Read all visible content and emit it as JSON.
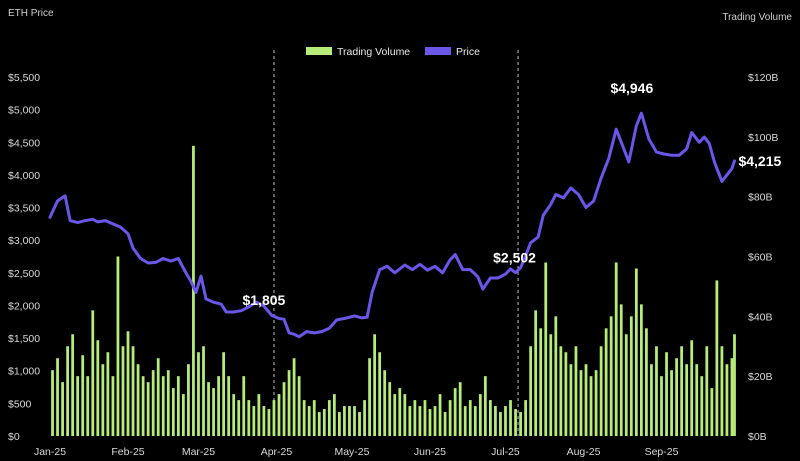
{
  "chart_data": {
    "type": "bar+line",
    "title": "",
    "ylabel_left": "ETH Price",
    "ylabel_right": "Trading Volume",
    "y_left_ticks": [
      "$0",
      "$500",
      "$1,000",
      "$1,500",
      "$2,000",
      "$2,500",
      "$3,000",
      "$3,500",
      "$4,000",
      "$4,500",
      "$5,000",
      "$5,500"
    ],
    "y_right_ticks": [
      "$0B",
      "$20B",
      "$40B",
      "$60B",
      "$80B",
      "$100B",
      "$120B"
    ],
    "x_ticks": [
      "Jan-25",
      "Feb-25",
      "Mar-25",
      "Apr-25",
      "May-25",
      "Jun-25",
      "Jul-25",
      "Aug-25",
      "Sep-25"
    ],
    "ylim_left": [
      0,
      5500
    ],
    "ylim_right": [
      0,
      120
    ],
    "legend": {
      "placement": "top-center",
      "items": [
        {
          "name": "Trading Volume",
          "color": "#b5ec7a"
        },
        {
          "name": "Price",
          "color": "#6a57e8"
        }
      ]
    },
    "vertical_markers": [
      "2025-03-31",
      "2025-07-06"
    ],
    "annotations": [
      {
        "text": "$1,805",
        "x": "2025-03-27",
        "y": 1805
      },
      {
        "text": "$2,502",
        "x": "2025-07-05",
        "y": 2502
      },
      {
        "text": "$4,946",
        "x": "2025-08-23",
        "y": 4946
      },
      {
        "text": "$4,215",
        "x": "2025-09-30",
        "y": 4215
      }
    ],
    "series": [
      {
        "name": "Price",
        "color": "#6a57e8",
        "points": [
          [
            "2025-01-01",
            3350
          ],
          [
            "2025-01-04",
            3600
          ],
          [
            "2025-01-07",
            3680
          ],
          [
            "2025-01-09",
            3300
          ],
          [
            "2025-01-12",
            3270
          ],
          [
            "2025-01-15",
            3300
          ],
          [
            "2025-01-18",
            3320
          ],
          [
            "2025-01-20",
            3280
          ],
          [
            "2025-01-23",
            3300
          ],
          [
            "2025-01-26",
            3250
          ],
          [
            "2025-01-29",
            3200
          ],
          [
            "2025-02-01",
            3100
          ],
          [
            "2025-02-03",
            2880
          ],
          [
            "2025-02-06",
            2720
          ],
          [
            "2025-02-09",
            2650
          ],
          [
            "2025-02-12",
            2660
          ],
          [
            "2025-02-15",
            2720
          ],
          [
            "2025-02-18",
            2680
          ],
          [
            "2025-02-21",
            2720
          ],
          [
            "2025-02-24",
            2500
          ],
          [
            "2025-02-26",
            2370
          ],
          [
            "2025-02-28",
            2200
          ],
          [
            "2025-03-02",
            2450
          ],
          [
            "2025-03-04",
            2100
          ],
          [
            "2025-03-07",
            2050
          ],
          [
            "2025-03-10",
            2020
          ],
          [
            "2025-03-12",
            1900
          ],
          [
            "2025-03-15",
            1900
          ],
          [
            "2025-03-18",
            1920
          ],
          [
            "2025-03-21",
            1980
          ],
          [
            "2025-03-24",
            2050
          ],
          [
            "2025-03-27",
            1990
          ],
          [
            "2025-03-30",
            1850
          ],
          [
            "2025-04-02",
            1800
          ],
          [
            "2025-04-04",
            1790
          ],
          [
            "2025-04-06",
            1580
          ],
          [
            "2025-04-08",
            1560
          ],
          [
            "2025-04-10",
            1520
          ],
          [
            "2025-04-13",
            1600
          ],
          [
            "2025-04-16",
            1580
          ],
          [
            "2025-04-19",
            1600
          ],
          [
            "2025-04-22",
            1650
          ],
          [
            "2025-04-25",
            1780
          ],
          [
            "2025-04-28",
            1800
          ],
          [
            "2025-05-02",
            1840
          ],
          [
            "2025-05-05",
            1810
          ],
          [
            "2025-05-07",
            1820
          ],
          [
            "2025-05-09",
            2200
          ],
          [
            "2025-05-12",
            2550
          ],
          [
            "2025-05-15",
            2600
          ],
          [
            "2025-05-18",
            2500
          ],
          [
            "2025-05-22",
            2620
          ],
          [
            "2025-05-25",
            2550
          ],
          [
            "2025-05-28",
            2630
          ],
          [
            "2025-05-31",
            2540
          ],
          [
            "2025-06-03",
            2600
          ],
          [
            "2025-06-06",
            2500
          ],
          [
            "2025-06-09",
            2700
          ],
          [
            "2025-06-11",
            2780
          ],
          [
            "2025-06-14",
            2550
          ],
          [
            "2025-06-17",
            2550
          ],
          [
            "2025-06-20",
            2440
          ],
          [
            "2025-06-22",
            2250
          ],
          [
            "2025-06-25",
            2420
          ],
          [
            "2025-06-28",
            2420
          ],
          [
            "2025-07-01",
            2480
          ],
          [
            "2025-07-03",
            2560
          ],
          [
            "2025-07-05",
            2502
          ],
          [
            "2025-07-07",
            2580
          ],
          [
            "2025-07-09",
            2760
          ],
          [
            "2025-07-11",
            2960
          ],
          [
            "2025-07-14",
            3050
          ],
          [
            "2025-07-16",
            3380
          ],
          [
            "2025-07-19",
            3550
          ],
          [
            "2025-07-21",
            3700
          ],
          [
            "2025-07-24",
            3650
          ],
          [
            "2025-07-27",
            3800
          ],
          [
            "2025-07-30",
            3700
          ],
          [
            "2025-08-02",
            3500
          ],
          [
            "2025-08-05",
            3600
          ],
          [
            "2025-08-08",
            3950
          ],
          [
            "2025-08-11",
            4250
          ],
          [
            "2025-08-14",
            4700
          ],
          [
            "2025-08-17",
            4400
          ],
          [
            "2025-08-19",
            4200
          ],
          [
            "2025-08-22",
            4750
          ],
          [
            "2025-08-24",
            4946
          ],
          [
            "2025-08-27",
            4550
          ],
          [
            "2025-08-30",
            4350
          ],
          [
            "2025-09-02",
            4320
          ],
          [
            "2025-09-05",
            4300
          ],
          [
            "2025-09-08",
            4300
          ],
          [
            "2025-09-11",
            4400
          ],
          [
            "2025-09-13",
            4650
          ],
          [
            "2025-09-16",
            4500
          ],
          [
            "2025-09-18",
            4580
          ],
          [
            "2025-09-20",
            4480
          ],
          [
            "2025-09-22",
            4200
          ],
          [
            "2025-09-25",
            3900
          ],
          [
            "2025-09-27",
            4000
          ],
          [
            "2025-09-29",
            4100
          ],
          [
            "2025-09-30",
            4215
          ]
        ]
      },
      {
        "name": "Trading Volume",
        "color": "#b5ec7a",
        "unit": "B",
        "points": [
          [
            "2025-01-02",
            22
          ],
          [
            "2025-01-04",
            26
          ],
          [
            "2025-01-06",
            18
          ],
          [
            "2025-01-08",
            30
          ],
          [
            "2025-01-10",
            34
          ],
          [
            "2025-01-12",
            20
          ],
          [
            "2025-01-14",
            27
          ],
          [
            "2025-01-16",
            20
          ],
          [
            "2025-01-18",
            42
          ],
          [
            "2025-01-20",
            32
          ],
          [
            "2025-01-22",
            24
          ],
          [
            "2025-01-24",
            28
          ],
          [
            "2025-01-26",
            20
          ],
          [
            "2025-01-28",
            60
          ],
          [
            "2025-01-30",
            30
          ],
          [
            "2025-02-01",
            35
          ],
          [
            "2025-02-03",
            30
          ],
          [
            "2025-02-05",
            24
          ],
          [
            "2025-02-07",
            20
          ],
          [
            "2025-02-09",
            18
          ],
          [
            "2025-02-11",
            22
          ],
          [
            "2025-02-13",
            26
          ],
          [
            "2025-02-15",
            20
          ],
          [
            "2025-02-17",
            22
          ],
          [
            "2025-02-19",
            16
          ],
          [
            "2025-02-21",
            20
          ],
          [
            "2025-02-23",
            14
          ],
          [
            "2025-02-25",
            24
          ],
          [
            "2025-02-27",
            97
          ],
          [
            "2025-03-01",
            28
          ],
          [
            "2025-03-03",
            30
          ],
          [
            "2025-03-05",
            18
          ],
          [
            "2025-03-07",
            16
          ],
          [
            "2025-03-09",
            20
          ],
          [
            "2025-03-11",
            28
          ],
          [
            "2025-03-13",
            20
          ],
          [
            "2025-03-15",
            14
          ],
          [
            "2025-03-17",
            12
          ],
          [
            "2025-03-19",
            20
          ],
          [
            "2025-03-21",
            12
          ],
          [
            "2025-03-23",
            10
          ],
          [
            "2025-03-25",
            14
          ],
          [
            "2025-03-27",
            10
          ],
          [
            "2025-03-29",
            9
          ],
          [
            "2025-03-31",
            12
          ],
          [
            "2025-04-02",
            14
          ],
          [
            "2025-04-04",
            18
          ],
          [
            "2025-04-06",
            22
          ],
          [
            "2025-04-08",
            26
          ],
          [
            "2025-04-10",
            20
          ],
          [
            "2025-04-12",
            12
          ],
          [
            "2025-04-14",
            10
          ],
          [
            "2025-04-16",
            12
          ],
          [
            "2025-04-18",
            8
          ],
          [
            "2025-04-20",
            9
          ],
          [
            "2025-04-22",
            12
          ],
          [
            "2025-04-24",
            14
          ],
          [
            "2025-04-26",
            8
          ],
          [
            "2025-04-28",
            10
          ],
          [
            "2025-04-30",
            10
          ],
          [
            "2025-05-02",
            10
          ],
          [
            "2025-05-04",
            8
          ],
          [
            "2025-05-06",
            12
          ],
          [
            "2025-05-08",
            26
          ],
          [
            "2025-05-10",
            34
          ],
          [
            "2025-05-12",
            28
          ],
          [
            "2025-05-14",
            22
          ],
          [
            "2025-05-16",
            18
          ],
          [
            "2025-05-18",
            14
          ],
          [
            "2025-05-20",
            16
          ],
          [
            "2025-05-22",
            14
          ],
          [
            "2025-05-24",
            10
          ],
          [
            "2025-05-26",
            12
          ],
          [
            "2025-05-28",
            10
          ],
          [
            "2025-05-30",
            12
          ],
          [
            "2025-06-01",
            9
          ],
          [
            "2025-06-03",
            10
          ],
          [
            "2025-06-05",
            14
          ],
          [
            "2025-06-07",
            8
          ],
          [
            "2025-06-09",
            12
          ],
          [
            "2025-06-11",
            16
          ],
          [
            "2025-06-13",
            18
          ],
          [
            "2025-06-15",
            10
          ],
          [
            "2025-06-17",
            12
          ],
          [
            "2025-06-19",
            10
          ],
          [
            "2025-06-21",
            14
          ],
          [
            "2025-06-23",
            20
          ],
          [
            "2025-06-25",
            12
          ],
          [
            "2025-06-27",
            10
          ],
          [
            "2025-06-29",
            8
          ],
          [
            "2025-07-01",
            10
          ],
          [
            "2025-07-03",
            12
          ],
          [
            "2025-07-05",
            9
          ],
          [
            "2025-07-07",
            8
          ],
          [
            "2025-07-09",
            12
          ],
          [
            "2025-07-11",
            30
          ],
          [
            "2025-07-13",
            42
          ],
          [
            "2025-07-15",
            36
          ],
          [
            "2025-07-17",
            58
          ],
          [
            "2025-07-19",
            34
          ],
          [
            "2025-07-21",
            40
          ],
          [
            "2025-07-23",
            30
          ],
          [
            "2025-07-25",
            28
          ],
          [
            "2025-07-27",
            24
          ],
          [
            "2025-07-29",
            30
          ],
          [
            "2025-07-31",
            22
          ],
          [
            "2025-08-02",
            24
          ],
          [
            "2025-08-04",
            20
          ],
          [
            "2025-08-06",
            22
          ],
          [
            "2025-08-08",
            30
          ],
          [
            "2025-08-10",
            36
          ],
          [
            "2025-08-12",
            40
          ],
          [
            "2025-08-14",
            58
          ],
          [
            "2025-08-16",
            44
          ],
          [
            "2025-08-18",
            34
          ],
          [
            "2025-08-20",
            40
          ],
          [
            "2025-08-22",
            56
          ],
          [
            "2025-08-24",
            44
          ],
          [
            "2025-08-26",
            36
          ],
          [
            "2025-08-28",
            24
          ],
          [
            "2025-08-30",
            30
          ],
          [
            "2025-09-01",
            20
          ],
          [
            "2025-09-03",
            28
          ],
          [
            "2025-09-05",
            22
          ],
          [
            "2025-09-07",
            26
          ],
          [
            "2025-09-09",
            30
          ],
          [
            "2025-09-11",
            24
          ],
          [
            "2025-09-13",
            32
          ],
          [
            "2025-09-15",
            24
          ],
          [
            "2025-09-17",
            20
          ],
          [
            "2025-09-19",
            30
          ],
          [
            "2025-09-21",
            16
          ],
          [
            "2025-09-23",
            52
          ],
          [
            "2025-09-25",
            30
          ],
          [
            "2025-09-27",
            24
          ],
          [
            "2025-09-29",
            26
          ],
          [
            "2025-09-30",
            34
          ]
        ]
      }
    ]
  }
}
